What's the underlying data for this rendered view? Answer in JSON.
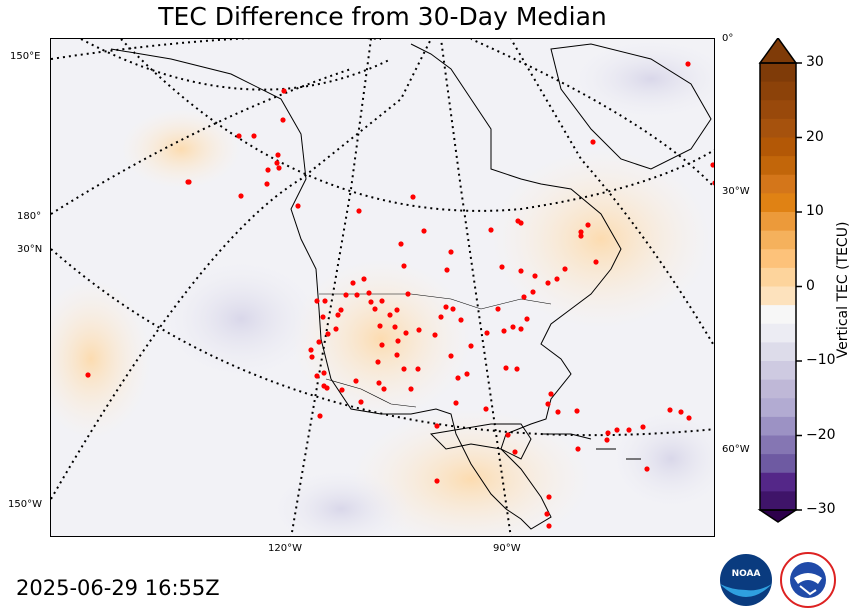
{
  "title": "TEC Difference from 30-Day Median",
  "timestamp": "2025-06-29 16:55Z",
  "colorbar": {
    "label": "Vertical TEC (TECU)",
    "ticks": [
      "30",
      "20",
      "10",
      "0",
      "−10",
      "−20",
      "−30"
    ],
    "min": -30,
    "max": 30,
    "colors": {
      "max": "#7f3b08",
      "high": "#e08214",
      "mid_high": "#fdb863",
      "zero": "#f7f7f7",
      "mid_low": "#b2abd2",
      "low": "#542788",
      "min": "#2d004b"
    }
  },
  "map_labels": {
    "left": [
      "150°E",
      "180°",
      "30°N",
      "150°W"
    ],
    "right": [
      "0°",
      "30°W",
      "60°W"
    ],
    "bottom": [
      "120°W",
      "90°W"
    ]
  },
  "station_color": "#ff0000",
  "logos": [
    "NOAA",
    "NATIONAL WEATHER SERVICE"
  ]
}
